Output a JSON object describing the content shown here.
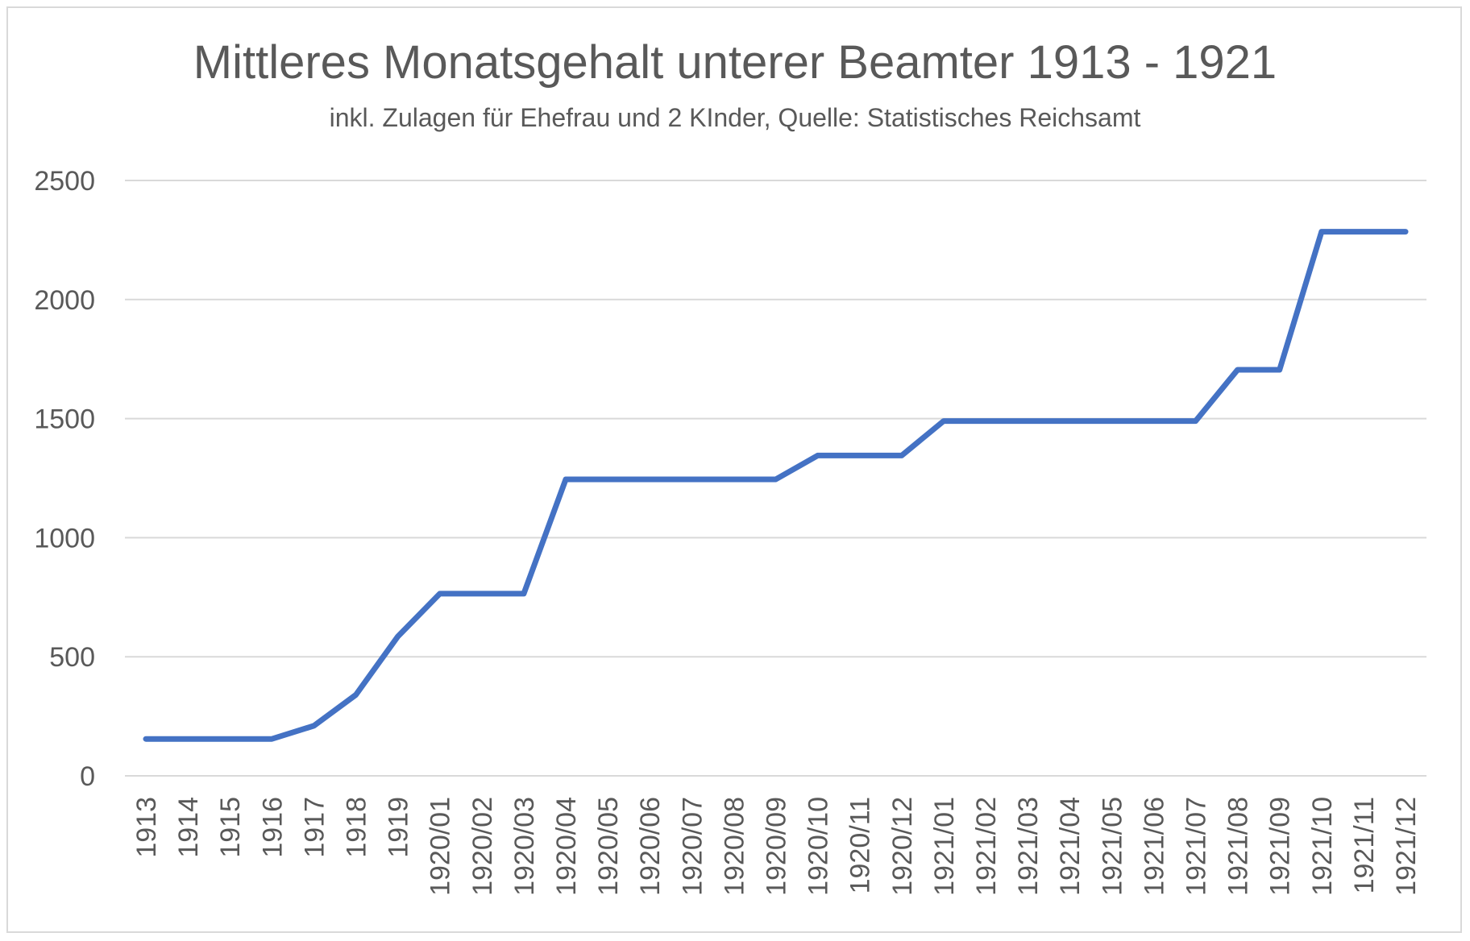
{
  "chart_data": {
    "type": "line",
    "title": "Mittleres Monatsgehalt unterer Beamter 1913 - 1921",
    "subtitle": "inkl. Zulagen für Ehefrau und 2 KInder, Quelle: Statistisches Reichsamt",
    "xlabel": "",
    "ylabel": "",
    "ylim": [
      0,
      2500
    ],
    "yticks": [
      "0",
      "500",
      "1000",
      "1500",
      "2000",
      "2500"
    ],
    "grid": true,
    "legend": "none",
    "categories": [
      "1913",
      "1914",
      "1915",
      "1916",
      "1917",
      "1918",
      "1919",
      "1920/01",
      "1920/02",
      "1920/03",
      "1920/04",
      "1920/05",
      "1920/06",
      "1920/07",
      "1920/08",
      "1920/09",
      "1920/10",
      "1920/11",
      "1920/12",
      "1921/01",
      "1921/02",
      "1921/03",
      "1921/04",
      "1921/05",
      "1921/06",
      "1921/07",
      "1921/08",
      "1921/09",
      "1921/10",
      "1921/11",
      "1921/12"
    ],
    "series": [
      {
        "color": "#4472C4",
        "values": [
          155,
          155,
          155,
          155,
          210,
          340,
          585,
          765,
          765,
          765,
          1245,
          1245,
          1245,
          1245,
          1245,
          1245,
          1345,
          1345,
          1345,
          1490,
          1490,
          1490,
          1490,
          1490,
          1490,
          1490,
          1705,
          1705,
          2285,
          2285,
          2285
        ]
      }
    ]
  }
}
